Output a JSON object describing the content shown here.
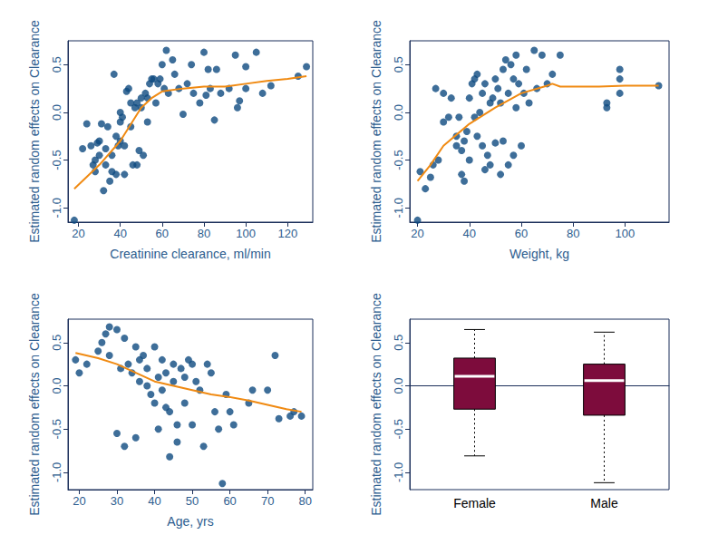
{
  "chart_data": [
    {
      "type": "scatter",
      "x_label": "Creatinine clearance, ml/min",
      "y_label": "Estimated random effects on Clearance",
      "xlim": [
        15,
        132
      ],
      "xticks": [
        20,
        40,
        60,
        80,
        100,
        120
      ],
      "ylim": [
        -1.15,
        0.75
      ],
      "yticks": [
        {
          "value": -1,
          "label": "-1.0"
        },
        {
          "value": -0.5,
          "label": "-0.5"
        },
        {
          "value": 0,
          "label": "0.0"
        },
        {
          "value": 0.5,
          "label": "0.5"
        }
      ],
      "grid": false,
      "series": [
        {
          "type": "scatter",
          "color": "#0e4a80",
          "marker": "circle",
          "x": [
            18,
            22,
            24,
            26,
            27,
            28,
            28,
            29,
            30,
            30,
            31,
            32,
            33,
            33,
            34,
            35,
            36,
            36,
            37,
            38,
            38,
            39,
            40,
            40,
            40,
            41,
            42,
            42,
            43,
            44,
            45,
            45,
            46,
            47,
            48,
            48,
            49,
            50,
            50,
            51,
            52,
            53,
            53,
            54,
            55,
            56,
            57,
            58,
            59,
            60,
            61,
            62,
            63,
            65,
            66,
            68,
            70,
            72,
            74,
            75,
            78,
            80,
            81,
            82,
            83,
            85,
            86,
            88,
            92,
            95,
            96,
            97,
            100,
            100,
            105,
            108,
            112,
            125,
            129
          ],
          "values": [
            -1.13,
            -0.38,
            -0.12,
            -0.35,
            -0.55,
            -0.62,
            -0.5,
            -0.32,
            -0.3,
            -0.45,
            -0.12,
            -0.82,
            -0.55,
            -0.38,
            -0.15,
            -0.72,
            -0.45,
            -0.62,
            0.4,
            -0.25,
            -0.65,
            -0.35,
            0.0,
            -0.1,
            -0.3,
            -0.05,
            -0.35,
            -0.65,
            0.22,
            0.25,
            -0.15,
            0.1,
            -0.55,
            0.05,
            -0.55,
            0.1,
            -0.4,
            0.05,
            0.15,
            -0.45,
            0.2,
            -0.1,
            0.15,
            0.3,
            0.35,
            0.35,
            0.1,
            0.3,
            0.35,
            0.5,
            0.25,
            0.65,
            0.2,
            0.55,
            0.4,
            0.25,
            -0.02,
            0.3,
            0.5,
            0.2,
            0.1,
            0.63,
            0.18,
            0.45,
            0.25,
            -0.08,
            0.45,
            0.2,
            0.25,
            0.6,
            0.05,
            0.12,
            0.25,
            0.48,
            0.63,
            0.2,
            0.28,
            0.38,
            0.48
          ]
        },
        {
          "type": "line",
          "color": "#f08a12",
          "line_style": "solid",
          "x": [
            18,
            30,
            40,
            50,
            55,
            60,
            70,
            80,
            90,
            100,
            110,
            120,
            129
          ],
          "values": [
            -0.8,
            -0.55,
            -0.3,
            0.05,
            0.15,
            0.22,
            0.25,
            0.27,
            0.27,
            0.3,
            0.33,
            0.35,
            0.38
          ]
        }
      ]
    },
    {
      "type": "scatter",
      "x_label": "Weight, kg",
      "y_label": "Estimated random effects on Clearance",
      "xlim": [
        17,
        117
      ],
      "xticks": [
        20,
        40,
        60,
        80,
        100
      ],
      "ylim": [
        -1.15,
        0.75
      ],
      "yticks": [
        {
          "value": -1,
          "label": "-1.0"
        },
        {
          "value": -0.5,
          "label": "-0.5"
        },
        {
          "value": 0,
          "label": "0.0"
        },
        {
          "value": 0.5,
          "label": "0.5"
        }
      ],
      "grid": false,
      "series": [
        {
          "type": "scatter",
          "color": "#0e4a80",
          "marker": "circle",
          "x": [
            20,
            21,
            23,
            25,
            26,
            27,
            28,
            30,
            30,
            32,
            33,
            35,
            35,
            36,
            37,
            37,
            38,
            38,
            39,
            40,
            40,
            41,
            42,
            42,
            43,
            43,
            44,
            45,
            45,
            46,
            46,
            47,
            48,
            48,
            49,
            50,
            50,
            51,
            52,
            52,
            53,
            53,
            54,
            55,
            55,
            56,
            57,
            57,
            58,
            58,
            59,
            60,
            61,
            62,
            63,
            65,
            66,
            68,
            70,
            72,
            75,
            93,
            93,
            98,
            98,
            98,
            113
          ],
          "values": [
            -1.13,
            -0.62,
            -0.8,
            -0.68,
            -0.55,
            0.25,
            -0.5,
            -0.1,
            0.2,
            -0.05,
            0.15,
            -0.35,
            -0.25,
            -0.05,
            -0.4,
            -0.65,
            -0.72,
            -0.3,
            -0.2,
            0.15,
            -0.5,
            0.3,
            0.35,
            -0.05,
            0.4,
            -0.25,
            0.0,
            0.2,
            -0.35,
            0.3,
            -0.6,
            -0.45,
            0.1,
            -0.55,
            0.15,
            -0.32,
            0.35,
            0.25,
            -0.65,
            0.1,
            0.45,
            -0.3,
            0.55,
            0.2,
            -0.55,
            0.5,
            0.35,
            -0.45,
            0.6,
            0.05,
            0.3,
            -0.35,
            0.2,
            0.45,
            0.1,
            0.65,
            0.25,
            0.6,
            0.3,
            0.4,
            0.6,
            0.1,
            0.05,
            0.45,
            0.35,
            0.2,
            0.28
          ]
        },
        {
          "type": "line",
          "color": "#f08a12",
          "line_style": "solid",
          "x": [
            20,
            25,
            30,
            40,
            50,
            60,
            70,
            72,
            75,
            90,
            100,
            113
          ],
          "values": [
            -0.72,
            -0.55,
            -0.35,
            -0.12,
            0.05,
            0.2,
            0.28,
            0.3,
            0.27,
            0.27,
            0.28,
            0.28
          ]
        }
      ]
    },
    {
      "type": "scatter",
      "x_label": "Age, yrs",
      "y_label": "Estimated random effects on Clearance",
      "xlim": [
        17,
        82
      ],
      "xticks": [
        20,
        30,
        40,
        50,
        60,
        70,
        80
      ],
      "ylim": [
        -1.2,
        0.77
      ],
      "yticks": [
        {
          "value": -1,
          "label": "-1.0"
        },
        {
          "value": -0.5,
          "label": "-0.5"
        },
        {
          "value": 0,
          "label": "0.0"
        },
        {
          "value": 0.5,
          "label": "0.5"
        }
      ],
      "grid": false,
      "series": [
        {
          "type": "scatter",
          "color": "#0e4a80",
          "marker": "circle",
          "x": [
            19,
            20,
            22,
            25,
            26,
            27,
            28,
            28,
            30,
            30,
            31,
            32,
            32,
            33,
            34,
            35,
            35,
            36,
            36,
            37,
            38,
            38,
            39,
            40,
            40,
            41,
            41,
            42,
            42,
            43,
            43,
            44,
            44,
            45,
            45,
            46,
            46,
            47,
            48,
            48,
            49,
            50,
            50,
            51,
            52,
            53,
            54,
            55,
            56,
            57,
            58,
            59,
            60,
            61,
            65,
            66,
            70,
            72,
            73,
            76,
            77,
            79
          ],
          "values": [
            0.3,
            0.15,
            0.25,
            0.4,
            0.5,
            0.6,
            0.68,
            0.35,
            0.65,
            -0.55,
            0.2,
            0.55,
            -0.7,
            0.25,
            0.15,
            0.45,
            -0.6,
            0.3,
            0.05,
            0.35,
            0.2,
            0.0,
            -0.1,
            -0.2,
            0.45,
            0.1,
            -0.5,
            0.3,
            -0.05,
            0.15,
            -0.25,
            -0.3,
            -0.82,
            0.05,
            0.25,
            -0.45,
            -0.65,
            0.2,
            0.1,
            -0.2,
            0.3,
            0.25,
            -0.45,
            0.05,
            -0.05,
            -0.7,
            0.25,
            0.15,
            -0.3,
            -0.5,
            -1.13,
            -0.1,
            -0.3,
            -0.45,
            -0.2,
            -0.05,
            -0.05,
            0.35,
            -0.38,
            -0.35,
            -0.3,
            -0.35
          ]
        },
        {
          "type": "line",
          "color": "#f08a12",
          "line_style": "solid",
          "x": [
            19,
            25,
            30,
            35,
            40,
            45,
            50,
            55,
            60,
            65,
            70,
            75,
            79
          ],
          "values": [
            0.38,
            0.32,
            0.25,
            0.15,
            0.05,
            0.0,
            -0.05,
            -0.1,
            -0.13,
            -0.17,
            -0.22,
            -0.27,
            -0.3
          ]
        }
      ]
    },
    {
      "type": "boxplot",
      "y_label": "Estimated random effects on Clearance",
      "categories": [
        "Female",
        "Male"
      ],
      "values": [
        [
          -0.81,
          -0.27,
          0.11,
          0.32,
          0.65
        ],
        [
          -1.12,
          -0.34,
          0.06,
          0.25,
          0.62
        ]
      ],
      "color": "#7d0c3c",
      "ylim": [
        -1.2,
        0.77
      ],
      "yticks": [
        {
          "value": -1,
          "label": "-1.0"
        },
        {
          "value": -0.5,
          "label": "-0.5"
        },
        {
          "value": 0,
          "label": "0.0"
        },
        {
          "value": 0.5,
          "label": "0.5"
        }
      ],
      "grid": false
    }
  ]
}
